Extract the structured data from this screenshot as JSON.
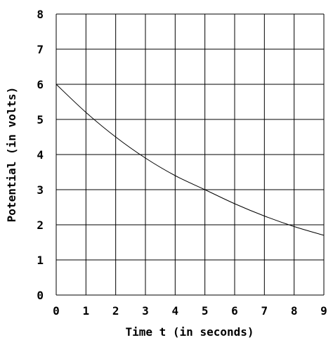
{
  "chart_data": {
    "type": "line",
    "title": "",
    "xlabel": "Time t (in seconds)",
    "ylabel": "Potential (in volts)",
    "xlim": [
      0,
      9
    ],
    "ylim": [
      0,
      8
    ],
    "x_ticks": [
      "0",
      "1",
      "2",
      "3",
      "4",
      "5",
      "6",
      "7",
      "8",
      "9"
    ],
    "y_ticks": [
      "0",
      "1",
      "2",
      "3",
      "4",
      "5",
      "6",
      "7",
      "8"
    ],
    "grid": true,
    "series": [
      {
        "x": [
          0,
          1,
          2,
          3,
          4,
          5,
          6,
          7,
          8,
          9
        ],
        "y": [
          6.0,
          5.2,
          4.5,
          3.9,
          3.4,
          3.0,
          2.6,
          2.25,
          1.95,
          1.7
        ]
      }
    ]
  }
}
